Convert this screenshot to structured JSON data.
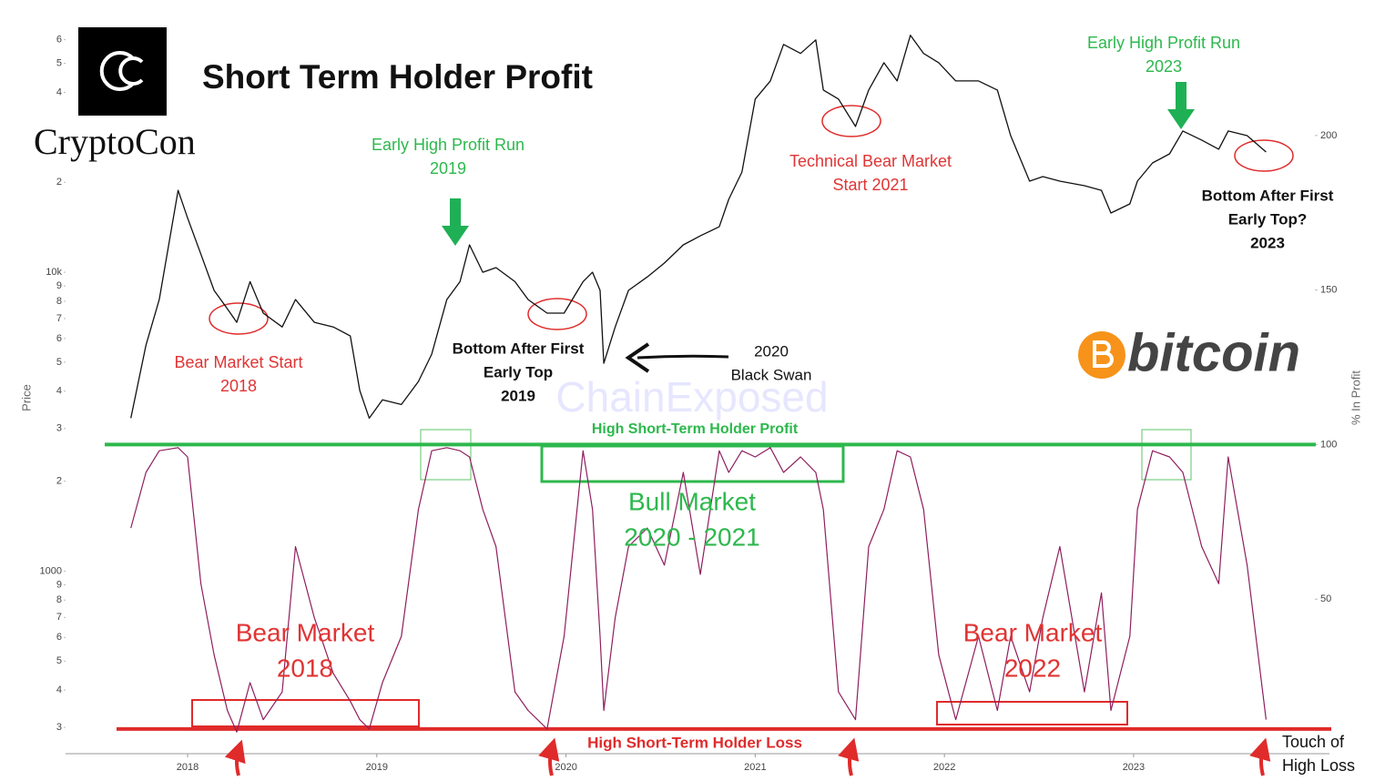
{
  "chart_data": {
    "type": "line",
    "title": "Short Term Holder Profit",
    "brand": "CryptoCon",
    "coin": "bitcoin",
    "watermark": "ChainExposed",
    "ylabel": "Price",
    "y2label": "% In Profit",
    "ylog": true,
    "grid": false,
    "x": [
      2017.7,
      2017.78,
      2017.85,
      2017.95,
      2018.0,
      2018.07,
      2018.14,
      2018.21,
      2018.26,
      2018.33,
      2018.4,
      2018.5,
      2018.57,
      2018.67,
      2018.77,
      2018.86,
      2018.91,
      2018.96,
      2019.03,
      2019.13,
      2019.22,
      2019.29,
      2019.37,
      2019.44,
      2019.49,
      2019.56,
      2019.63,
      2019.73,
      2019.8,
      2019.9,
      2019.99,
      2020.09,
      2020.14,
      2020.18,
      2020.2,
      2020.26,
      2020.33,
      2020.43,
      2020.52,
      2020.62,
      2020.71,
      2020.81,
      2020.86,
      2020.93,
      2021.0,
      2021.08,
      2021.15,
      2021.24,
      2021.32,
      2021.36,
      2021.44,
      2021.53,
      2021.6,
      2021.68,
      2021.75,
      2021.82,
      2021.89,
      2021.97,
      2022.06,
      2022.18,
      2022.28,
      2022.35,
      2022.45,
      2022.52,
      2022.61,
      2022.74,
      2022.83,
      2022.88,
      2022.98,
      2023.02,
      2023.1,
      2023.19,
      2023.26,
      2023.36,
      2023.45,
      2023.5,
      2023.6,
      2023.7
    ],
    "series": [
      {
        "color": "#111111",
        "values": [
          3250,
          5700,
          8100,
          18800,
          15200,
          11500,
          8700,
          7550,
          6800,
          9300,
          7300,
          6560,
          8100,
          6800,
          6560,
          6120,
          4020,
          3250,
          3740,
          3610,
          4310,
          5320,
          8100,
          9300,
          12350,
          10000,
          10360,
          9300,
          8100,
          7300,
          7300,
          9300,
          10000,
          8700,
          4960,
          6560,
          8700,
          9650,
          10730,
          12350,
          13240,
          14200,
          17540,
          21640,
          37970,
          43670,
          57830,
          53950,
          59900,
          40700,
          37970,
          30750,
          40700,
          50260,
          43670,
          62080,
          53950,
          50260,
          43670,
          43670,
          40700,
          28650,
          20180,
          20900,
          20180,
          19480,
          18800,
          15790,
          16930,
          20180,
          23220,
          24900,
          29700,
          27690,
          25810,
          29700,
          28650,
          25250
        ]
      },
      {
        "color": "#8e1f5e",
        "axis": "y2",
        "values": [
          73,
          91,
          98,
          99,
          96,
          55,
          32,
          14,
          7,
          23,
          11,
          20,
          67,
          44,
          26,
          17,
          11,
          8,
          23,
          38,
          79,
          98,
          99,
          98,
          96,
          79,
          67,
          20,
          14,
          8,
          38,
          98,
          79,
          38,
          14,
          44,
          67,
          73,
          61,
          91,
          58,
          98,
          91,
          98,
          96,
          99,
          91,
          96,
          91,
          79,
          20,
          11,
          67,
          79,
          98,
          96,
          79,
          32,
          11,
          38,
          14,
          38,
          20,
          44,
          67,
          20,
          52,
          14,
          38,
          79,
          98,
          96,
          91,
          67,
          55,
          96,
          61,
          11
        ]
      }
    ],
    "xlim": [
      2017.355,
      2024.035
    ],
    "xticks": [
      2018,
      2019,
      2020,
      2021,
      2022,
      2023
    ],
    "ylim": [
      245,
      66000
    ],
    "yticks": [
      {
        "value": 60000,
        "label": "6"
      },
      {
        "value": 50000,
        "label": "5"
      },
      {
        "value": 40000,
        "label": "4"
      },
      {
        "value": 20000,
        "label": "2"
      },
      {
        "value": 10000,
        "label": "10k"
      },
      {
        "value": 9000,
        "label": "9"
      },
      {
        "value": 8000,
        "label": "8"
      },
      {
        "value": 7000,
        "label": "7"
      },
      {
        "value": 6000,
        "label": "6"
      },
      {
        "value": 5000,
        "label": "5"
      },
      {
        "value": 4000,
        "label": "4"
      },
      {
        "value": 3000,
        "label": "3"
      },
      {
        "value": 2000,
        "label": "2"
      },
      1000,
      {
        "value": 900,
        "label": "9"
      },
      {
        "value": 800,
        "label": "8"
      },
      {
        "value": 700,
        "label": "7"
      },
      {
        "value": 600,
        "label": "6"
      },
      {
        "value": 500,
        "label": "5"
      },
      {
        "value": 400,
        "label": "4"
      },
      {
        "value": 300,
        "label": "3"
      }
    ],
    "y2lim": [
      0,
      235
    ],
    "y2ticks": [
      50,
      100,
      150,
      200
    ],
    "reference_lines": [
      {
        "value": 100,
        "color": "#2db84d",
        "label": "High Short-Term Holder Profit"
      },
      {
        "value": 8,
        "color": "#e02b2b",
        "label": "High Short-Term Holder Loss"
      }
    ],
    "annotations": [
      [
        "Early High Profit Run",
        "2019"
      ],
      [
        "Early High Profit Run",
        "2023"
      ],
      [
        "Technical Bear Market",
        "Start 2021"
      ],
      [
        "Bear Market Start",
        "2018"
      ],
      [
        "Bottom After First",
        "Early Top",
        "2019"
      ],
      [
        "2020",
        "Black Swan"
      ],
      [
        "Bottom After First",
        "Early Top?",
        "2023"
      ],
      [
        "Bull Market",
        "2020 - 2021"
      ],
      [
        "Bear Market",
        "2018"
      ],
      [
        "Bear Market",
        "2022"
      ],
      [
        "Touch of",
        "High Loss"
      ]
    ]
  }
}
